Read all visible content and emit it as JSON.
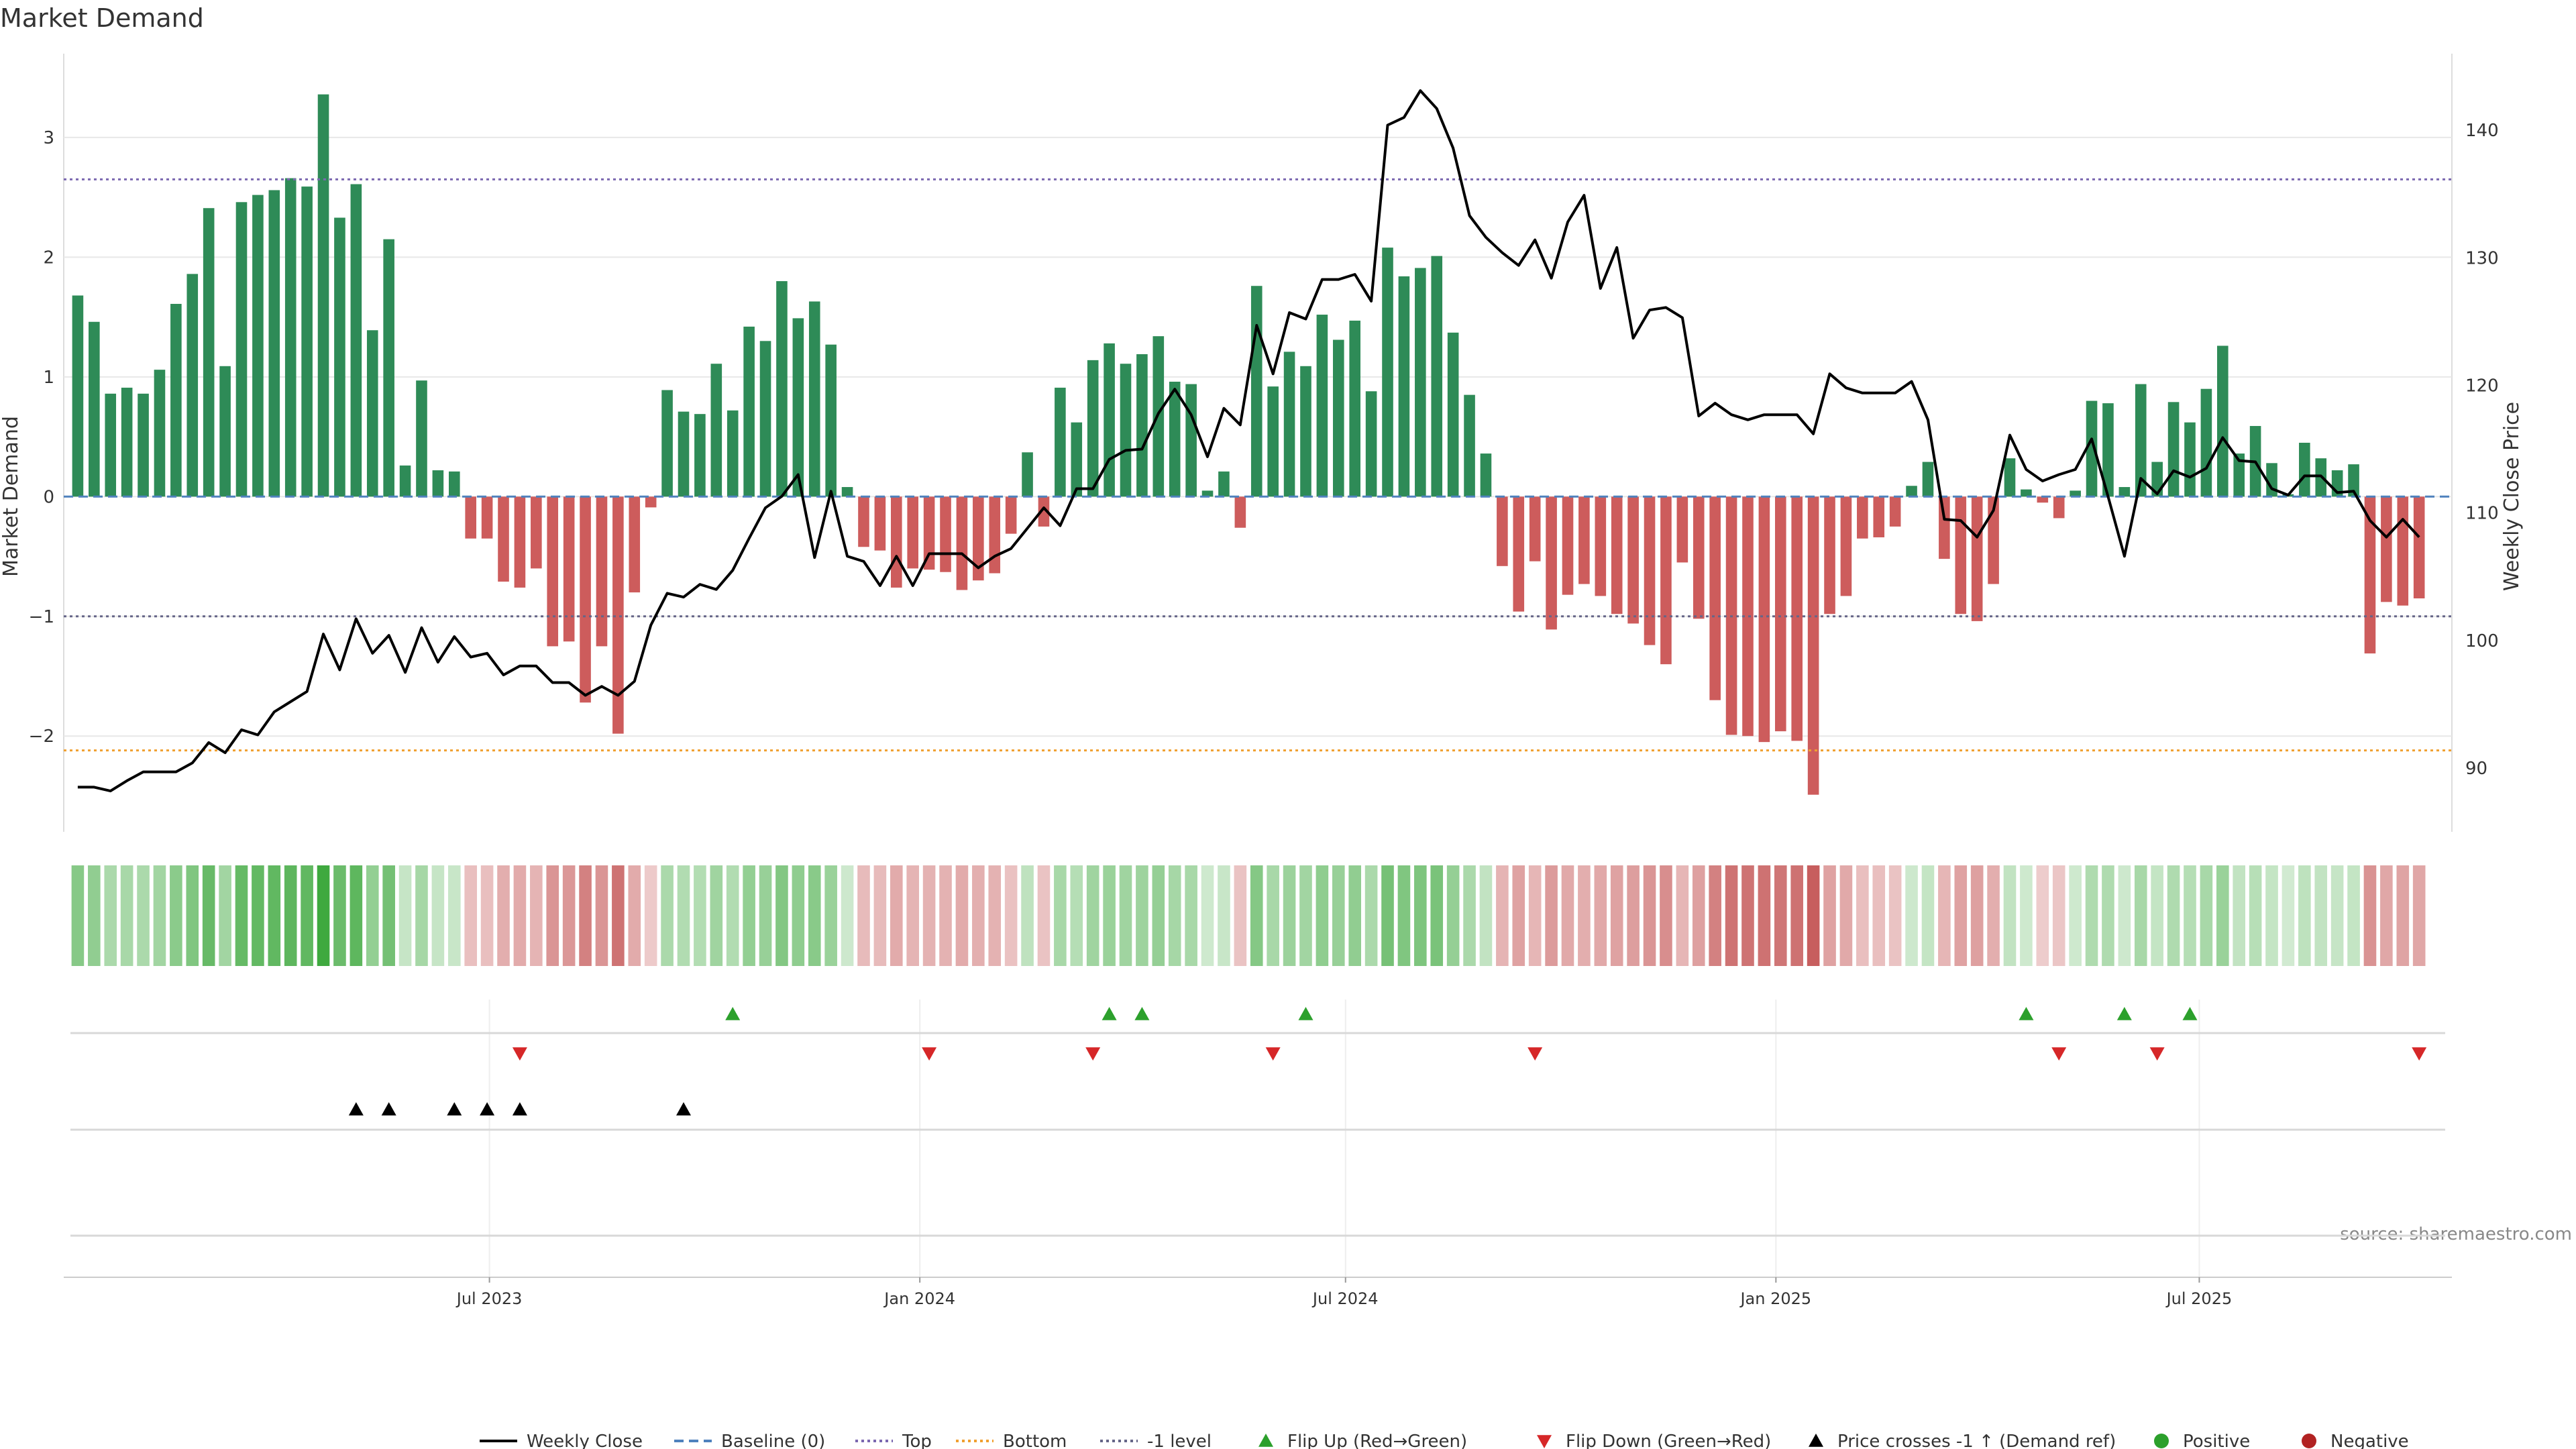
{
  "chart_data": {
    "type": "bar",
    "title": "Market Demand",
    "ylabel_left": "Market Demand",
    "ylabel_right": "Weekly Close Price",
    "ylim_left": [
      -2.8,
      3.7
    ],
    "yticks_left": [
      {
        "v": 3,
        "label": "3"
      },
      {
        "v": 2,
        "label": "2"
      },
      {
        "v": 1,
        "label": "1"
      },
      {
        "v": 0,
        "label": "0"
      },
      {
        "v": -1,
        "label": "−1"
      },
      {
        "v": -2,
        "label": "−2"
      }
    ],
    "ylim_right": [
      85,
      146
    ],
    "yticks_right": [
      {
        "v": 140,
        "label": "140"
      },
      {
        "v": 130,
        "label": "130"
      },
      {
        "v": 120,
        "label": "120"
      },
      {
        "v": 110,
        "label": "110"
      },
      {
        "v": 100,
        "label": "100"
      },
      {
        "v": 90,
        "label": "90"
      }
    ],
    "x_start": "2023-01-06",
    "x_end": "2025-10-10",
    "x_step_days": 7,
    "x_range": [
      "2022-12-31",
      "2025-10-17"
    ],
    "xticks": [
      {
        "date": "2023-07-01",
        "label": "Jul 2023"
      },
      {
        "date": "2024-01-01",
        "label": "Jan 2024"
      },
      {
        "date": "2024-07-01",
        "label": "Jul 2024"
      },
      {
        "date": "2025-01-01",
        "label": "Jan 2025"
      },
      {
        "date": "2025-07-01",
        "label": "Jul 2025"
      }
    ],
    "levels": {
      "top": 2.65,
      "bottom": -2.12,
      "minus_one": -1,
      "baseline": 0
    },
    "demand": [
      1.68,
      1.46,
      0.86,
      0.91,
      0.86,
      1.06,
      1.61,
      1.86,
      2.41,
      1.09,
      2.46,
      2.52,
      2.56,
      2.66,
      2.59,
      3.36,
      2.33,
      2.61,
      1.39,
      2.15,
      0.26,
      0.97,
      0.22,
      0.21,
      -0.35,
      -0.35,
      -0.71,
      -0.76,
      -0.6,
      -1.25,
      -1.21,
      -1.72,
      -1.25,
      -1.98,
      -0.8,
      -0.09,
      0.89,
      0.71,
      0.69,
      1.11,
      0.72,
      1.42,
      1.3,
      1.8,
      1.49,
      1.63,
      1.27,
      0.08,
      -0.42,
      -0.45,
      -0.76,
      -0.6,
      -0.61,
      -0.63,
      -0.78,
      -0.7,
      -0.64,
      -0.31,
      0.37,
      -0.25,
      0.91,
      0.62,
      1.14,
      1.28,
      1.11,
      1.19,
      1.34,
      0.96,
      0.94,
      0.05,
      0.21,
      -0.26,
      1.76,
      0.92,
      1.21,
      1.09,
      1.52,
      1.31,
      1.47,
      0.88,
      2.08,
      1.84,
      1.91,
      2.01,
      1.37,
      0.85,
      0.36,
      -0.58,
      -0.96,
      -0.54,
      -1.11,
      -0.82,
      -0.73,
      -0.83,
      -0.98,
      -1.06,
      -1.24,
      -1.4,
      -0.55,
      -1.02,
      -1.7,
      -1.99,
      -2.0,
      -2.05,
      -1.96,
      -2.04,
      -2.49,
      -0.98,
      -0.83,
      -0.35,
      -0.34,
      -0.25,
      0.09,
      0.29,
      -0.52,
      -0.98,
      -1.04,
      -0.73,
      0.32,
      0.06,
      -0.05,
      -0.18,
      0.05,
      0.8,
      0.78,
      0.08,
      0.94,
      0.29,
      0.79,
      0.62,
      0.9,
      1.26,
      0.36,
      0.59,
      0.28,
      0.02,
      0.45,
      0.32,
      0.22,
      0.27,
      -1.31,
      -0.88,
      -0.91,
      -0.85
    ],
    "close": [
      88.5,
      88.5,
      88.2,
      89,
      89.7,
      89.7,
      89.7,
      90.4,
      92,
      91.2,
      93,
      92.6,
      94.4,
      95.2,
      96,
      100.5,
      97.7,
      101.7,
      99,
      100.4,
      97.5,
      101,
      98.3,
      100.3,
      98.7,
      99,
      97.3,
      98,
      98,
      96.7,
      96.7,
      95.7,
      96.4,
      95.7,
      96.8,
      101.2,
      103.7,
      103.4,
      104.4,
      104,
      105.5,
      108,
      110.4,
      111.3,
      113,
      106.5,
      111.7,
      106.6,
      106.2,
      104.3,
      106.6,
      104.3,
      106.8,
      106.8,
      106.8,
      105.7,
      106.6,
      107.2,
      108.8,
      110.4,
      109,
      111.9,
      111.9,
      114.2,
      114.9,
      115,
      117.8,
      119.7,
      117.7,
      114.4,
      118.2,
      116.9,
      124.7,
      120.9,
      125.7,
      125.2,
      128.3,
      128.3,
      128.7,
      126.6,
      140.4,
      141,
      143.1,
      141.7,
      138.6,
      133.3,
      131.6,
      130.4,
      129.4,
      131.4,
      128.4,
      132.8,
      134.9,
      127.6,
      130.8,
      123.7,
      125.9,
      126.1,
      125.3,
      117.6,
      118.6,
      117.7,
      117.3,
      117.7,
      117.7,
      117.7,
      116.2,
      120.9,
      119.8,
      119.4,
      119.4,
      119.4,
      120.3,
      117.3,
      109.5,
      109.4,
      108.1,
      110.2,
      116.1,
      113.4,
      112.5,
      113,
      113.4,
      115.8,
      111.3,
      106.6,
      112.7,
      111.5,
      113.3,
      112.8,
      113.5,
      115.9,
      114.1,
      114,
      111.9,
      111.4,
      112.9,
      112.9,
      111.6,
      111.7,
      109.4,
      108.1,
      109.5,
      108.1
    ],
    "flip_up_dates": [
      "2023-10-13",
      "2024-03-22",
      "2024-04-05",
      "2024-06-14",
      "2025-04-18",
      "2025-05-30",
      "2025-06-27"
    ],
    "flip_down_dates": [
      "2023-07-14",
      "2024-01-05",
      "2024-03-15",
      "2024-05-31",
      "2024-09-20",
      "2025-05-02",
      "2025-06-13",
      "2025-10-03"
    ],
    "price_cross_dates": [
      "2023-05-05",
      "2023-05-19",
      "2023-06-16",
      "2023-06-30",
      "2023-07-14",
      "2023-09-22"
    ],
    "colors": {
      "positive": "#2e8b57",
      "negative": "#cd5c5c",
      "close": "#000000",
      "baseline": "#4f81bd",
      "top": "#7b68b0",
      "bottom": "#f0a030",
      "minus_one": "#666688",
      "flip_up": "#2ca02c",
      "flip_down": "#d62728",
      "cross": "#000000",
      "strip_pos": "#2ca02c",
      "strip_neg": "#b22222",
      "grid": "#e8e8e8"
    },
    "source": "source: sharemaestro.com",
    "legend": [
      {
        "label": "Weekly Close",
        "kind": "line",
        "color": "#000000",
        "dash": ""
      },
      {
        "label": "Baseline (0)",
        "kind": "line",
        "color": "#4f81bd",
        "dash": "14,8"
      },
      {
        "label": "Top",
        "kind": "line",
        "color": "#7b68b0",
        "dash": "4,5"
      },
      {
        "label": "Bottom",
        "kind": "line",
        "color": "#f0a030",
        "dash": "4,5"
      },
      {
        "label": "-1 level",
        "kind": "line",
        "color": "#666688",
        "dash": "4,5"
      },
      {
        "label": "Flip Up (Red→Green)",
        "kind": "tri-up",
        "color": "#2ca02c"
      },
      {
        "label": "Flip Down (Green→Red)",
        "kind": "tri-down",
        "color": "#d62728"
      },
      {
        "label": "Price crosses -1 ↑ (Demand ref)",
        "kind": "tri-up",
        "color": "#000000"
      },
      {
        "label": "Positive",
        "kind": "dot",
        "color": "#2ca02c"
      },
      {
        "label": "Negative",
        "kind": "dot",
        "color": "#b22222"
      }
    ]
  }
}
